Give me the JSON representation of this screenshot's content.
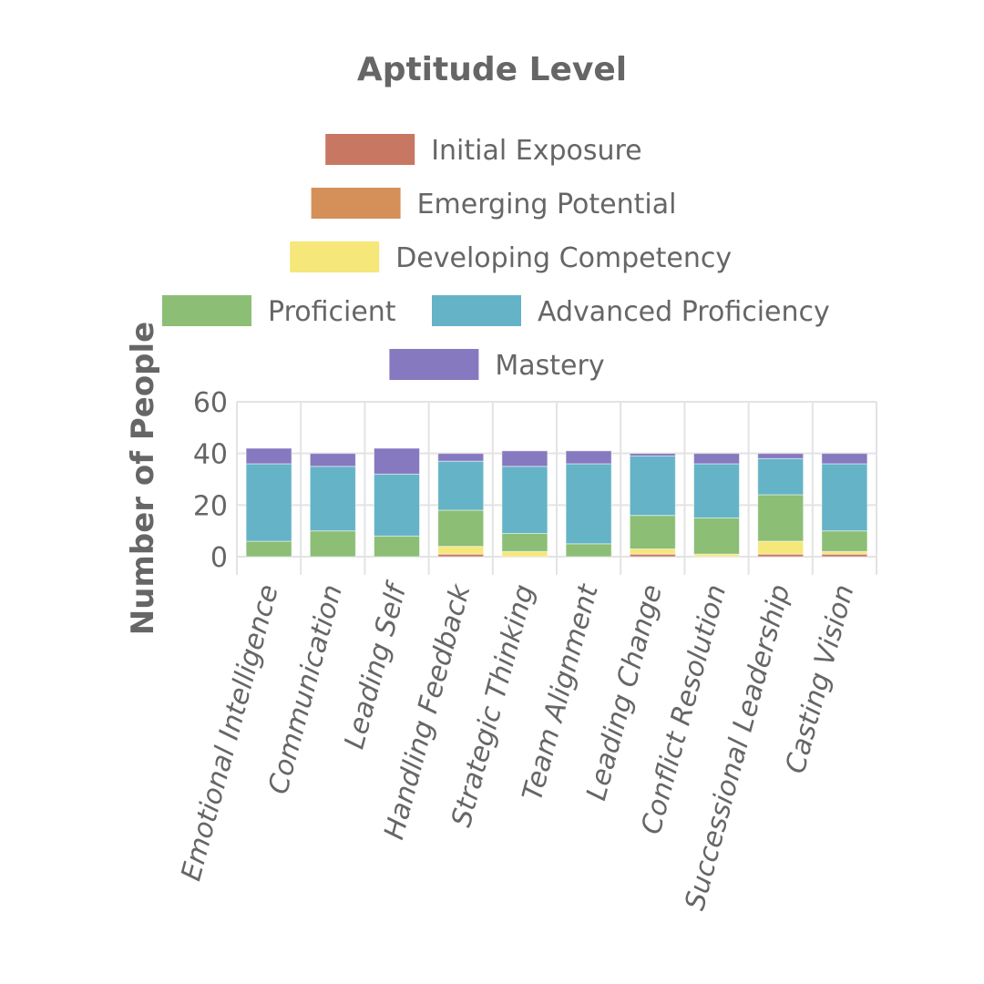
{
  "chart_data": {
    "type": "bar",
    "stacked": true,
    "title": "Aptitude Level",
    "xlabel": "",
    "ylabel": "Number of People",
    "ylim": [
      0,
      60
    ],
    "yticks": [
      0,
      20,
      40,
      60
    ],
    "grid": true,
    "legend_position": "top",
    "categories": [
      "Emotional Intelligence",
      "Communication",
      "Leading Self",
      "Handling Feedback",
      "Strategic Thinking",
      "Team Alignment",
      "Leading Change",
      "Conflict Resolution",
      "Successional Leadership",
      "Casting Vision"
    ],
    "series": [
      {
        "name": "Initial Exposure",
        "color": "#c87763",
        "values": [
          0,
          0,
          0,
          1,
          0,
          0,
          1,
          0,
          1,
          1
        ]
      },
      {
        "name": "Emerging Potential",
        "color": "#d49058",
        "values": [
          0,
          0,
          0,
          0,
          0,
          0,
          0,
          0,
          0,
          0
        ]
      },
      {
        "name": "Developing Competency",
        "color": "#f5e77a",
        "values": [
          0,
          0,
          0,
          3,
          2,
          0,
          2,
          1,
          5,
          1
        ]
      },
      {
        "name": "Proficient",
        "color": "#8cbe76",
        "values": [
          6,
          10,
          8,
          14,
          7,
          5,
          13,
          14,
          18,
          8
        ]
      },
      {
        "name": "Advanced Proficiency",
        "color": "#65b3c7",
        "values": [
          30,
          25,
          24,
          19,
          26,
          31,
          23,
          21,
          14,
          26
        ]
      },
      {
        "name": "Mastery",
        "color": "#8679bf",
        "values": [
          6,
          5,
          10,
          3,
          6,
          5,
          1,
          4,
          2,
          4
        ]
      }
    ]
  }
}
